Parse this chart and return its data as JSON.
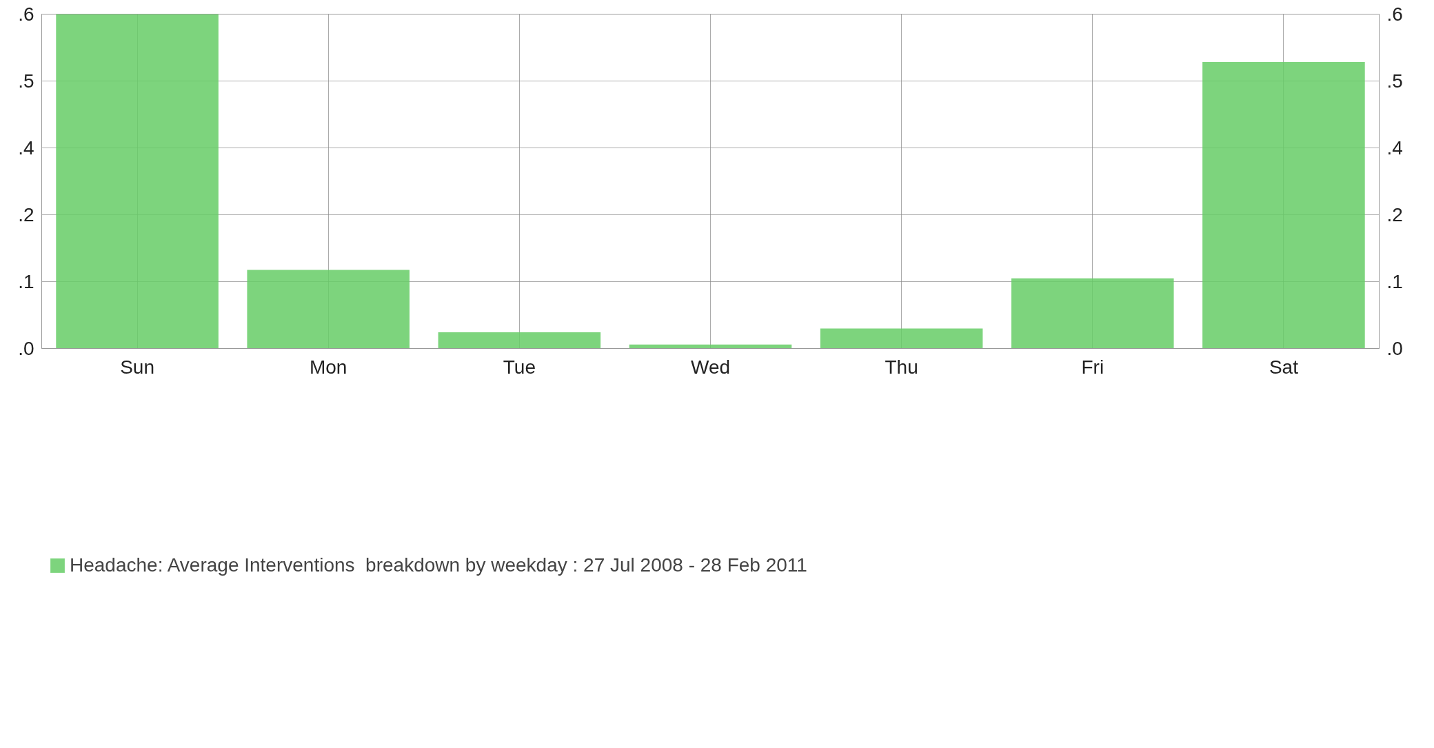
{
  "chart_data": {
    "type": "bar",
    "categories": [
      "Sun",
      "Mon",
      "Tue",
      "Wed",
      "Thu",
      "Fri",
      "Sat"
    ],
    "series": [
      {
        "name": "Headache: Average Interventions  breakdown by weekday : 27 Jul 2008 - 28 Feb 2011",
        "color": "#66cc66",
        "values": [
          0.6,
          0.141,
          0.029,
          0.007,
          0.036,
          0.126,
          0.514
        ]
      }
    ],
    "ylim": [
      0,
      0.6
    ],
    "yticks": [
      {
        "value": 0,
        "label": ".0"
      },
      {
        "value": 0.12,
        "label": ".1"
      },
      {
        "value": 0.24,
        "label": ".2"
      },
      {
        "value": 0.36,
        "label": ".4"
      },
      {
        "value": 0.48,
        "label": ".5"
      },
      {
        "value": 0.6,
        "label": ".6"
      }
    ],
    "y2lim": [
      0,
      0.6
    ],
    "y2ticks": [
      {
        "value": 0,
        "label": ".0"
      },
      {
        "value": 0.12,
        "label": ".1"
      },
      {
        "value": 0.24,
        "label": ".2"
      },
      {
        "value": 0.36,
        "label": ".4"
      },
      {
        "value": 0.48,
        "label": ".5"
      },
      {
        "value": 0.6,
        "label": ".6"
      }
    ],
    "grid": true,
    "legend": "bottom left"
  }
}
